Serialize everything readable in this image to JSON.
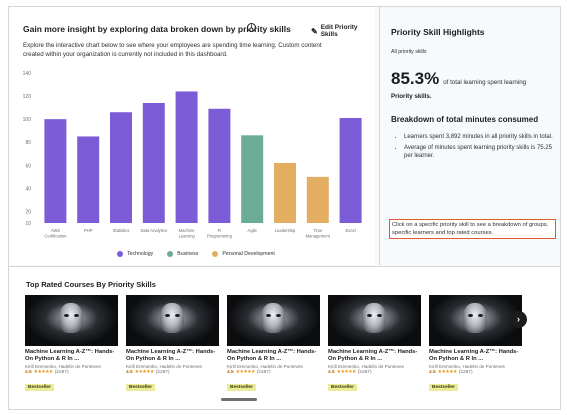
{
  "header": {
    "title": "Gain more insight by exploring data broken down by priority skills",
    "edit_label": "Edit Priority Skills",
    "description": "Explore the interactive chart below to see where your employees are spending time learning. Custom content created within your organization is currently not included in this dashboard."
  },
  "icons": {
    "info": "info-icon",
    "edit": "pencil-icon",
    "next": "chevron-right-icon",
    "star": "star-icon"
  },
  "colors": {
    "technology": "#7b5cd6",
    "business": "#6aac97",
    "personal_development": "#e3ae62"
  },
  "chart_data": {
    "type": "bar",
    "categories": [
      "AWS Certification",
      "PHP",
      "Statistics",
      "Data Analytics",
      "Machine Learning",
      "R Programming",
      "Agile",
      "Leadership",
      "Time Management",
      "Excel"
    ],
    "category_lines": [
      [
        "AWS",
        "Certification"
      ],
      [
        "PHP"
      ],
      [
        "Statistics"
      ],
      [
        "Data Analytics"
      ],
      [
        "Machine",
        "Learning"
      ],
      [
        "R",
        "Programming"
      ],
      [
        "Agile"
      ],
      [
        "Leadership"
      ],
      [
        "Time",
        "Management"
      ],
      [
        "Excel"
      ]
    ],
    "values": [
      100,
      85,
      106,
      114,
      124,
      109,
      86,
      62,
      50,
      101
    ],
    "groups": [
      "technology",
      "technology",
      "technology",
      "technology",
      "technology",
      "technology",
      "business",
      "personal_development",
      "personal_development",
      "technology"
    ],
    "ylim": [
      10,
      140
    ],
    "yticks": [
      10,
      20,
      40,
      60,
      80,
      100,
      120,
      140
    ],
    "legend": [
      {
        "key": "technology",
        "label": "Technology"
      },
      {
        "key": "business",
        "label": "Business"
      },
      {
        "key": "personal_development",
        "label": "Personal Development"
      }
    ],
    "legend_position": "bottom",
    "grid": false
  },
  "highlights": {
    "title": "Priority Skill Highlights",
    "subtitle": "All priority skills",
    "percent": "85.3%",
    "percent_text": "of total learning spent learning",
    "percent_bold": "Priority skills.",
    "breakdown_title": "Breakdown of total minutes consumed",
    "bullets": [
      "Learners spent 3,892 minutes in all priority skills in total.",
      "Average of minutes spent learning priority skills is 75.25 per learner."
    ],
    "hint": "Click on a specific priority skill to see a breakdown of groups, specific learners and top rated courses."
  },
  "courses": {
    "title": "Top Rated Courses By Priority Skills",
    "items": [
      {
        "title": "Machine Learning A-Z™: Hands-On Python & R In ...",
        "author": "Kirill Eremenko, Hadelin de Ponteves",
        "rating": "4.5",
        "stars": "★★★★★",
        "count": "(2287)",
        "badge": "Bestseller"
      },
      {
        "title": "Machine Learning A-Z™: Hands-On Python & R In ...",
        "author": "Kirill Eremenko, Hadelin de Ponteves",
        "rating": "4.5",
        "stars": "★★★★★",
        "count": "(2287)",
        "badge": "Bestseller"
      },
      {
        "title": "Machine Learning A-Z™: Hands-On Python & R In ...",
        "author": "Kirill Eremenko, Hadelin de Ponteves",
        "rating": "4.5",
        "stars": "★★★★★",
        "count": "(2287)",
        "badge": "Bestseller"
      },
      {
        "title": "Machine Learning A-Z™: Hands-On Python & R In ...",
        "author": "Kirill Eremenko, Hadelin de Ponteves",
        "rating": "4.5",
        "stars": "★★★★★",
        "count": "(2287)",
        "badge": "Bestseller"
      },
      {
        "title": "Machine Learning A-Z™: Hands-On Python & R In ...",
        "author": "Kirill Eremenko, Hadelin de Ponteves",
        "rating": "4.5",
        "stars": "★★★★★",
        "count": "(2287)",
        "badge": "Bestseller"
      }
    ]
  }
}
